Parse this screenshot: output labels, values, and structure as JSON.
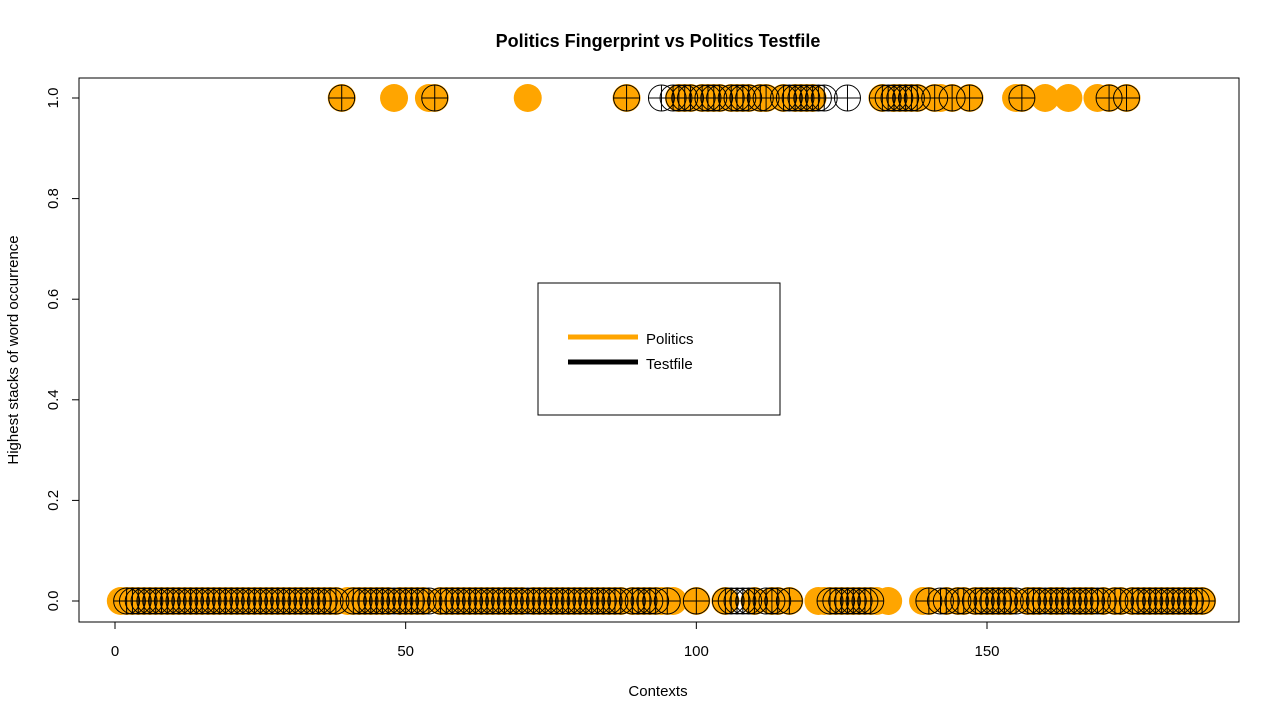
{
  "chart_data": {
    "type": "scatter",
    "title": "Politics Fingerprint vs Politics Testfile",
    "xlabel": "Contexts",
    "ylabel": "Highest stacks of word occurrence",
    "xlim": [
      1,
      187
    ],
    "ylim": [
      0,
      1
    ],
    "x_ticks": [
      "0",
      "50",
      "100",
      "150"
    ],
    "y_ticks": [
      "0.0",
      "0.2",
      "0.4",
      "0.6",
      "0.8",
      "1.0"
    ],
    "legend": {
      "position": "center",
      "entries": [
        {
          "label": "Politics",
          "color": "#FFA500"
        },
        {
          "label": "Testfile",
          "color": "#000000"
        }
      ]
    },
    "series": [
      {
        "name": "Politics",
        "marker": "filled-circle",
        "color": "#FFA500",
        "x_at_1": [
          39,
          48,
          54,
          55,
          71,
          88,
          97,
          98,
          99,
          101,
          102,
          103,
          104,
          106,
          107,
          108,
          109,
          111,
          112,
          115,
          117,
          118,
          119,
          120,
          132,
          134,
          135,
          136,
          137,
          138,
          141,
          142,
          144,
          147,
          155,
          156,
          160,
          164,
          169,
          171,
          174
        ],
        "x_at_0": [
          1,
          2,
          3,
          4,
          5,
          6,
          7,
          8,
          9,
          10,
          11,
          12,
          13,
          14,
          15,
          16,
          17,
          18,
          19,
          20,
          21,
          22,
          23,
          24,
          25,
          26,
          27,
          28,
          29,
          30,
          31,
          32,
          33,
          34,
          35,
          36,
          37,
          38,
          40,
          41,
          42,
          43,
          44,
          45,
          46,
          47,
          49,
          50,
          51,
          52,
          53,
          56,
          57,
          58,
          59,
          60,
          61,
          62,
          63,
          64,
          65,
          66,
          67,
          68,
          69,
          70,
          72,
          73,
          74,
          75,
          76,
          77,
          78,
          79,
          80,
          81,
          82,
          83,
          84,
          85,
          86,
          87,
          89,
          90,
          91,
          92,
          93,
          94,
          95,
          96,
          100,
          105,
          110,
          113,
          114,
          116,
          121,
          122,
          123,
          124,
          125,
          126,
          127,
          128,
          129,
          130,
          131,
          133,
          139,
          140,
          143,
          145,
          146,
          148,
          149,
          150,
          151,
          152,
          153,
          154,
          157,
          158,
          159,
          161,
          162,
          163,
          165,
          166,
          167,
          168,
          170,
          172,
          173,
          175,
          176,
          177,
          178,
          179,
          180,
          181,
          182,
          183,
          184,
          185,
          186,
          187
        ]
      },
      {
        "name": "Testfile",
        "marker": "circle-plus",
        "color": "#000000",
        "x_at_1": [
          39,
          55,
          88,
          94,
          96,
          97,
          98,
          99,
          101,
          102,
          103,
          104,
          106,
          107,
          108,
          109,
          111,
          112,
          115,
          116,
          117,
          118,
          119,
          120,
          121,
          122,
          126,
          132,
          133,
          134,
          135,
          136,
          137,
          138,
          141,
          144,
          147,
          156,
          171,
          174
        ],
        "x_at_0": [
          2,
          3,
          4,
          5,
          6,
          7,
          8,
          9,
          10,
          11,
          12,
          13,
          14,
          15,
          16,
          17,
          18,
          19,
          20,
          21,
          22,
          23,
          24,
          25,
          26,
          27,
          28,
          29,
          30,
          31,
          32,
          33,
          34,
          35,
          36,
          37,
          38,
          41,
          42,
          43,
          44,
          45,
          46,
          47,
          48,
          49,
          50,
          51,
          52,
          53,
          54,
          56,
          57,
          58,
          59,
          60,
          61,
          62,
          63,
          64,
          65,
          66,
          67,
          68,
          69,
          70,
          71,
          72,
          73,
          74,
          75,
          76,
          77,
          78,
          79,
          80,
          81,
          82,
          83,
          84,
          85,
          86,
          87,
          89,
          90,
          91,
          92,
          93,
          95,
          100,
          105,
          106,
          107,
          108,
          109,
          110,
          112,
          113,
          114,
          116,
          123,
          124,
          125,
          126,
          127,
          128,
          129,
          130,
          140,
          142,
          143,
          145,
          146,
          148,
          149,
          150,
          151,
          152,
          153,
          154,
          155,
          157,
          158,
          159,
          160,
          161,
          162,
          163,
          164,
          165,
          166,
          167,
          168,
          169,
          170,
          172,
          173,
          175,
          176,
          177,
          178,
          179,
          180,
          181,
          182,
          183,
          184,
          185,
          186,
          187
        ]
      }
    ]
  }
}
